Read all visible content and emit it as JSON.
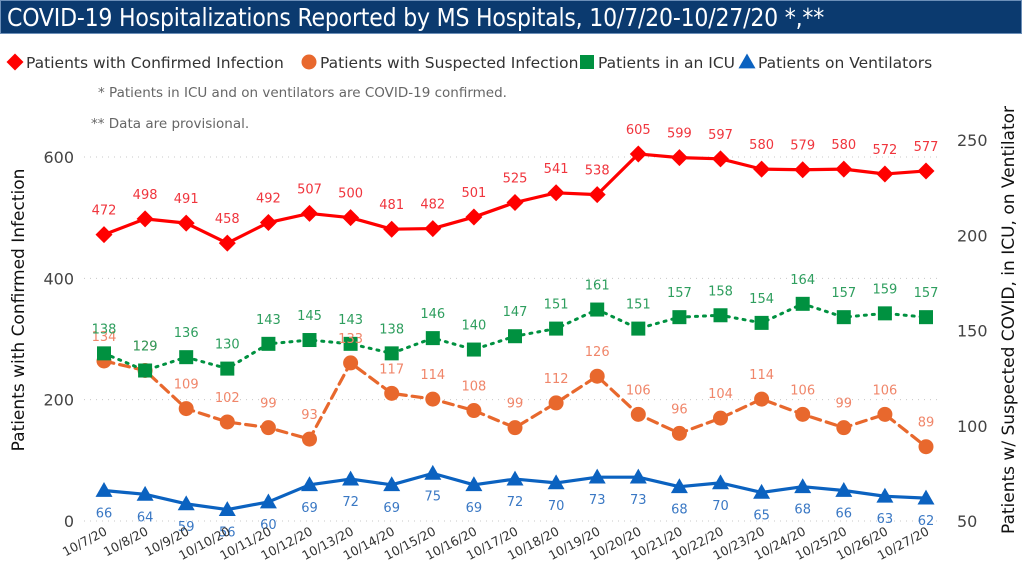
{
  "chart_data": {
    "type": "line",
    "title": "COVID-19 Hospitalizations Reported by MS Hospitals, 10/7/20-10/27/20 *,**",
    "notes": [
      "* Patients in ICU and on ventilators are COVID-19 confirmed.",
      "** Data are provisional."
    ],
    "x": [
      "10/7/20",
      "10/8/20",
      "10/9/20",
      "10/10/20",
      "10/11/20",
      "10/12/20",
      "10/13/20",
      "10/14/20",
      "10/15/20",
      "10/16/20",
      "10/17/20",
      "10/18/20",
      "10/19/20",
      "10/20/20",
      "10/21/20",
      "10/22/20",
      "10/23/20",
      "10/24/20",
      "10/25/20",
      "10/26/20",
      "10/27/20"
    ],
    "ylabel_left": "Patients with Confirmed Infection",
    "ylabel_right": "Patients w/ Suspected COVID, in ICU, on Ventilator",
    "ylim_left": [
      0,
      600
    ],
    "yticks_left": [
      0,
      200,
      400,
      600
    ],
    "ylim_right": [
      50,
      250
    ],
    "yticks_right": [
      50,
      100,
      150,
      200,
      250
    ],
    "grid": true,
    "legend_position": "top-left",
    "series": [
      {
        "name": "Patients with Confirmed Infection",
        "axis": "left",
        "color": "#ff0000",
        "label_color": "#f0353d",
        "marker": "diamond",
        "line_style": "solid",
        "label_position": "above",
        "values": [
          472,
          498,
          491,
          458,
          492,
          507,
          500,
          481,
          482,
          501,
          525,
          541,
          538,
          605,
          599,
          597,
          580,
          579,
          580,
          572,
          577
        ]
      },
      {
        "name": "Patients with Suspected Infection",
        "axis": "right",
        "color": "#e8682d",
        "label_color": "#f0866a",
        "marker": "circle",
        "line_style": "dashed",
        "label_position": "above",
        "values": [
          134,
          129,
          109,
          102,
          99,
          93,
          133,
          117,
          114,
          108,
          99,
          112,
          126,
          106,
          96,
          104,
          114,
          106,
          99,
          106,
          89
        ]
      },
      {
        "name": "Patients in an ICU",
        "axis": "right",
        "color": "#009140",
        "label_color": "#2e9e5e",
        "marker": "square",
        "line_style": "dotted",
        "label_position": "above",
        "values": [
          138,
          129,
          136,
          130,
          143,
          145,
          143,
          138,
          146,
          140,
          147,
          151,
          161,
          151,
          157,
          158,
          154,
          164,
          157,
          159,
          157
        ]
      },
      {
        "name": "Patients on Ventilators",
        "axis": "right",
        "color": "#0b62c0",
        "label_color": "#3a78c4",
        "marker": "triangle",
        "line_style": "solid",
        "label_position": "below",
        "values": [
          66,
          64,
          59,
          56,
          60,
          69,
          72,
          69,
          75,
          69,
          72,
          70,
          73,
          73,
          68,
          70,
          65,
          68,
          66,
          63,
          62
        ]
      }
    ]
  }
}
